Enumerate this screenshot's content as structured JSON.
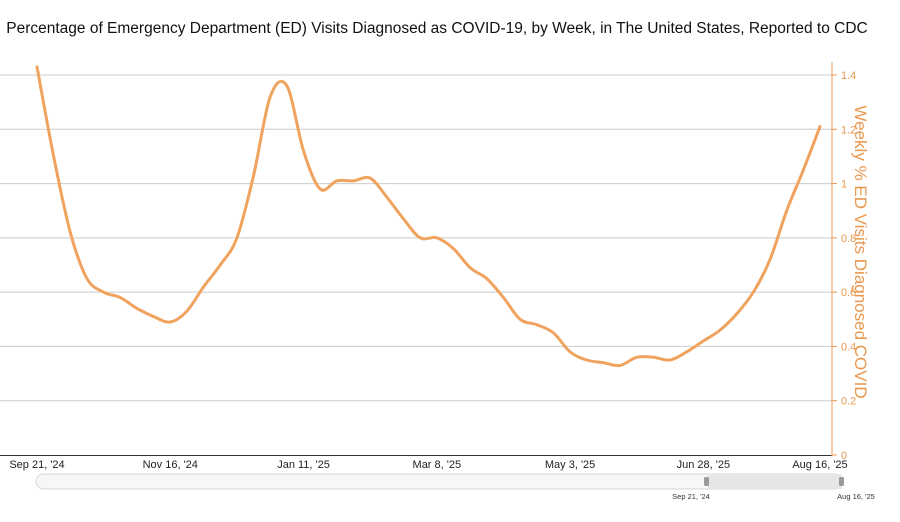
{
  "chart_data": {
    "type": "line",
    "title": "Percentage of Emergency Department (ED) Visits Diagnosed as COVID-19, by Week, in The United States, Reported to CDC",
    "ylabel": "Weekly % ED Visits Diagnosed COVID",
    "xlabel": "",
    "ylim": [
      0,
      1.4
    ],
    "y_ticks": [
      "0",
      "0.2",
      "0.4",
      "0.6",
      "0.8",
      "1",
      "1.2",
      "1.4"
    ],
    "x_ticks": [
      "Sep 21, '24",
      "Nov 16, '24",
      "Jan 11, '25",
      "Mar 8, '25",
      "May 3, '25",
      "Jun 28, '25",
      "Aug 16, '25"
    ],
    "x_tick_weeks": [
      0,
      8,
      16,
      24,
      32,
      40,
      47
    ],
    "grid": true,
    "series": [
      {
        "name": "Weekly % ED Visits Diagnosed COVID",
        "color": "#f0a35e",
        "weeks": [
          0,
          1,
          2,
          3,
          4,
          5,
          6,
          7,
          8,
          9,
          10,
          11,
          12,
          13,
          14,
          15,
          16,
          17,
          18,
          19,
          20,
          21,
          22,
          23,
          24,
          25,
          26,
          27,
          28,
          29,
          30,
          31,
          32,
          33,
          34,
          35,
          36,
          37,
          38,
          39,
          40,
          41,
          42,
          43,
          44,
          45,
          46,
          47
        ],
        "values": [
          1.43,
          1.1,
          0.82,
          0.65,
          0.6,
          0.58,
          0.54,
          0.51,
          0.49,
          0.53,
          0.62,
          0.7,
          0.8,
          1.03,
          1.32,
          1.36,
          1.12,
          0.98,
          1.01,
          1.01,
          1.02,
          0.95,
          0.87,
          0.8,
          0.8,
          0.76,
          0.69,
          0.65,
          0.58,
          0.5,
          0.48,
          0.45,
          0.38,
          0.35,
          0.34,
          0.33,
          0.36,
          0.36,
          0.35,
          0.38,
          0.42,
          0.46,
          0.52,
          0.6,
          0.72,
          0.9,
          1.05,
          1.21
        ]
      }
    ],
    "navigator": {
      "start_label": "Sep 21, '24",
      "end_label": "Aug 16, '25"
    }
  }
}
